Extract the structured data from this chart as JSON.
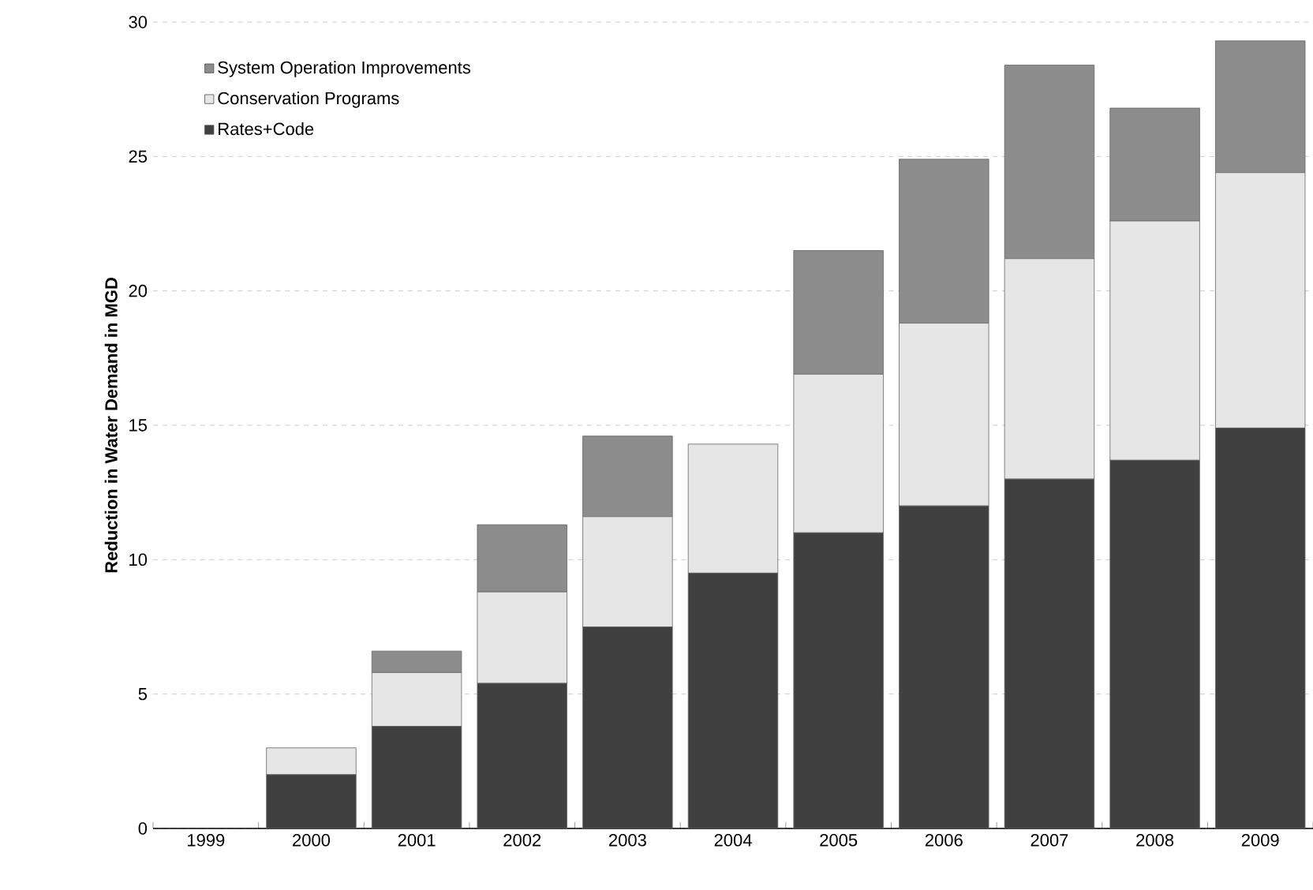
{
  "chart_data": {
    "type": "bar",
    "stacked": true,
    "ylabel": "Reduction in Water Demand in MGD",
    "categories": [
      "1999",
      "2000",
      "2001",
      "2002",
      "2003",
      "2004",
      "2005",
      "2006",
      "2007",
      "2008",
      "2009"
    ],
    "series": [
      {
        "name": "Rates+Code",
        "color": "#404040",
        "values": [
          0,
          2.0,
          3.8,
          5.4,
          7.5,
          9.5,
          11.0,
          12.0,
          13.0,
          13.7,
          14.9
        ]
      },
      {
        "name": "Conservation Programs",
        "color": "#e6e6e6",
        "values": [
          0,
          1.0,
          2.0,
          3.4,
          4.1,
          4.8,
          5.9,
          6.8,
          8.2,
          8.9,
          9.5
        ]
      },
      {
        "name": "System Operation Improvements",
        "color": "#8c8c8c",
        "values": [
          0,
          0,
          0.8,
          2.5,
          3.0,
          0,
          4.6,
          6.1,
          7.2,
          4.2,
          4.9
        ]
      }
    ],
    "ylim": [
      0,
      30
    ],
    "yticks": [
      0,
      5,
      10,
      15,
      20,
      25,
      30
    ],
    "grid": "y",
    "legend": "top left"
  }
}
